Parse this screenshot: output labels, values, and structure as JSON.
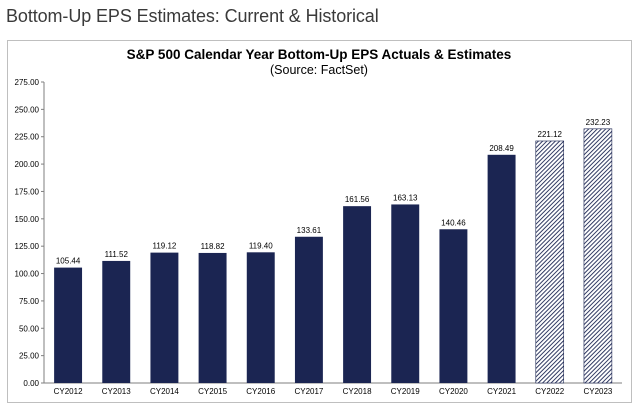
{
  "page": {
    "heading": "Bottom-Up EPS Estimates: Current & Historical"
  },
  "colors": {
    "bar": "#1b2552",
    "estimate_bar_stripe": "#1b2552",
    "estimate_bar_bg": "#ffffff",
    "axis": "#7f7f7f"
  },
  "chart_data": {
    "type": "bar",
    "title": "S&P 500 Calendar Year Bottom-Up EPS Actuals & Estimates",
    "subtitle": "(Source: FactSet)",
    "xlabel": "",
    "ylabel": "",
    "ylim": [
      0,
      275
    ],
    "yticks": [
      "0.00",
      "25.00",
      "50.00",
      "75.00",
      "100.00",
      "125.00",
      "150.00",
      "175.00",
      "200.00",
      "225.00",
      "250.00",
      "275.00"
    ],
    "grid": false,
    "categories": [
      "CY2012",
      "CY2013",
      "CY2014",
      "CY2015",
      "CY2016",
      "CY2017",
      "CY2018",
      "CY2019",
      "CY2020",
      "CY2021",
      "CY2022",
      "CY2023"
    ],
    "values": [
      105.44,
      111.52,
      119.12,
      118.82,
      119.4,
      133.61,
      161.56,
      163.13,
      140.46,
      208.49,
      221.12,
      232.23
    ],
    "data_labels": [
      "105.44",
      "111.52",
      "119.12",
      "118.82",
      "119.40",
      "133.61",
      "161.56",
      "163.13",
      "140.46",
      "208.49",
      "221.12",
      "232.23"
    ],
    "estimate": [
      false,
      false,
      false,
      false,
      false,
      false,
      false,
      false,
      false,
      false,
      true,
      true
    ]
  }
}
